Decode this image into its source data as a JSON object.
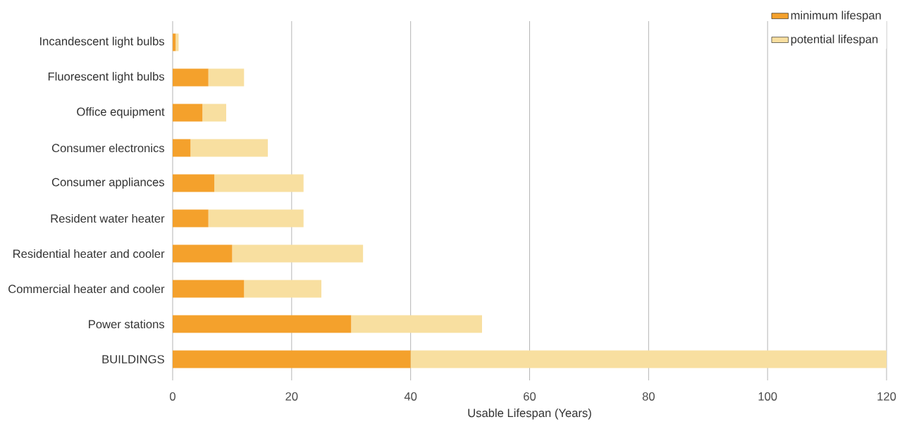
{
  "chart_data": {
    "type": "bar",
    "orientation": "horizontal",
    "stacked": true,
    "categories": [
      "Incandescent light bulbs",
      "Fluorescent light bulbs",
      "Office equipment",
      "Consumer electronics",
      "Consumer appliances",
      "Resident water heater",
      "Residential heater and cooler",
      "Commercial heater and cooler",
      "Power stations",
      "BUILDINGS"
    ],
    "series": [
      {
        "name": "minimum lifespan",
        "color": "#f4a12c",
        "values": [
          0.5,
          6,
          5,
          3,
          7,
          6,
          10,
          12,
          30,
          40
        ]
      },
      {
        "name": "potential lifespan",
        "color": "#f8dfa0",
        "values": [
          0.5,
          6,
          4,
          13,
          15,
          16,
          22,
          13,
          22,
          80
        ]
      }
    ],
    "xlabel": "Usable Lifespan (Years)",
    "xlim": [
      0,
      120
    ],
    "xticks": [
      0,
      20,
      40,
      60,
      80,
      100,
      120
    ],
    "grid": "x",
    "legend": "top right"
  }
}
